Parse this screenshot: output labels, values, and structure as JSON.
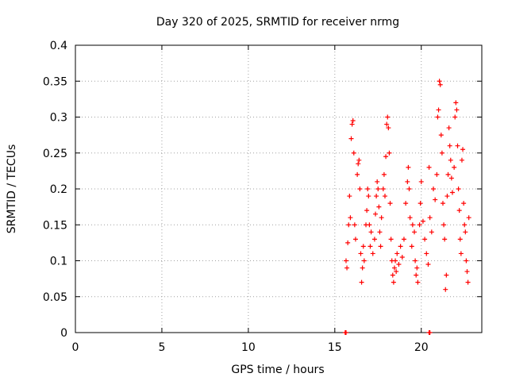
{
  "chart_data": {
    "type": "scatter",
    "title": "Day 320 of 2025, SRMTID for receiver nrmg",
    "xlabel": "GPS time / hours",
    "ylabel": "SRMTID / TECUs",
    "xlim": [
      0,
      23.5
    ],
    "ylim": [
      0,
      0.4
    ],
    "x_ticks": [
      0,
      5,
      10,
      15,
      20
    ],
    "y_ticks": [
      0,
      0.05,
      0.1,
      0.15,
      0.2,
      0.25,
      0.3,
      0.35,
      0.4
    ],
    "x_tick_labels": [
      "0",
      "5",
      "10",
      "15",
      "20"
    ],
    "y_tick_labels": [
      "0",
      "0.05",
      "0.1",
      "0.15",
      "0.2",
      "0.25",
      "0.3",
      "0.35",
      "0.4"
    ],
    "grid": true,
    "marker": "plus",
    "color": "#ff0000",
    "series": [
      {
        "name": "SRMTID",
        "points": [
          [
            15.6,
            0.0
          ],
          [
            15.65,
            0.0
          ],
          [
            20.45,
            0.0
          ],
          [
            20.5,
            0.0
          ],
          [
            15.65,
            0.1
          ],
          [
            15.7,
            0.09
          ],
          [
            15.75,
            0.125
          ],
          [
            15.8,
            0.15
          ],
          [
            15.85,
            0.19
          ],
          [
            15.9,
            0.16
          ],
          [
            15.95,
            0.27
          ],
          [
            16.0,
            0.29
          ],
          [
            16.05,
            0.295
          ],
          [
            16.1,
            0.25
          ],
          [
            16.15,
            0.15
          ],
          [
            16.2,
            0.13
          ],
          [
            16.3,
            0.22
          ],
          [
            16.35,
            0.235
          ],
          [
            16.4,
            0.24
          ],
          [
            16.45,
            0.2
          ],
          [
            16.5,
            0.11
          ],
          [
            16.55,
            0.07
          ],
          [
            16.6,
            0.09
          ],
          [
            16.65,
            0.12
          ],
          [
            16.7,
            0.1
          ],
          [
            16.8,
            0.15
          ],
          [
            16.85,
            0.17
          ],
          [
            16.9,
            0.2
          ],
          [
            16.95,
            0.19
          ],
          [
            17.0,
            0.15
          ],
          [
            17.05,
            0.12
          ],
          [
            17.1,
            0.14
          ],
          [
            17.2,
            0.11
          ],
          [
            17.3,
            0.13
          ],
          [
            17.35,
            0.165
          ],
          [
            17.4,
            0.19
          ],
          [
            17.45,
            0.21
          ],
          [
            17.5,
            0.2
          ],
          [
            17.55,
            0.175
          ],
          [
            17.6,
            0.14
          ],
          [
            17.65,
            0.12
          ],
          [
            17.7,
            0.16
          ],
          [
            17.8,
            0.2
          ],
          [
            17.85,
            0.22
          ],
          [
            17.9,
            0.19
          ],
          [
            17.95,
            0.245
          ],
          [
            18.0,
            0.29
          ],
          [
            18.05,
            0.3
          ],
          [
            18.1,
            0.285
          ],
          [
            18.15,
            0.25
          ],
          [
            18.2,
            0.18
          ],
          [
            18.25,
            0.13
          ],
          [
            18.3,
            0.1
          ],
          [
            18.35,
            0.08
          ],
          [
            18.4,
            0.07
          ],
          [
            18.45,
            0.09
          ],
          [
            18.5,
            0.1
          ],
          [
            18.55,
            0.085
          ],
          [
            18.6,
            0.11
          ],
          [
            18.7,
            0.095
          ],
          [
            18.8,
            0.12
          ],
          [
            18.9,
            0.105
          ],
          [
            19.0,
            0.13
          ],
          [
            19.1,
            0.18
          ],
          [
            19.2,
            0.21
          ],
          [
            19.25,
            0.23
          ],
          [
            19.3,
            0.2
          ],
          [
            19.35,
            0.16
          ],
          [
            19.45,
            0.12
          ],
          [
            19.5,
            0.15
          ],
          [
            19.6,
            0.14
          ],
          [
            19.65,
            0.1
          ],
          [
            19.7,
            0.08
          ],
          [
            19.75,
            0.09
          ],
          [
            19.8,
            0.07
          ],
          [
            19.9,
            0.15
          ],
          [
            19.95,
            0.18
          ],
          [
            20.0,
            0.21
          ],
          [
            20.1,
            0.155
          ],
          [
            20.2,
            0.13
          ],
          [
            20.3,
            0.11
          ],
          [
            20.4,
            0.095
          ],
          [
            20.45,
            0.23
          ],
          [
            20.5,
            0.16
          ],
          [
            20.6,
            0.14
          ],
          [
            20.7,
            0.2
          ],
          [
            20.8,
            0.185
          ],
          [
            20.9,
            0.22
          ],
          [
            20.95,
            0.3
          ],
          [
            21.0,
            0.31
          ],
          [
            21.05,
            0.35
          ],
          [
            21.1,
            0.345
          ],
          [
            21.15,
            0.275
          ],
          [
            21.2,
            0.25
          ],
          [
            21.25,
            0.18
          ],
          [
            21.3,
            0.15
          ],
          [
            21.35,
            0.13
          ],
          [
            21.4,
            0.06
          ],
          [
            21.45,
            0.08
          ],
          [
            21.5,
            0.19
          ],
          [
            21.55,
            0.22
          ],
          [
            21.6,
            0.285
          ],
          [
            21.65,
            0.26
          ],
          [
            21.7,
            0.24
          ],
          [
            21.75,
            0.215
          ],
          [
            21.8,
            0.195
          ],
          [
            21.9,
            0.23
          ],
          [
            21.95,
            0.3
          ],
          [
            22.0,
            0.32
          ],
          [
            22.05,
            0.31
          ],
          [
            22.1,
            0.26
          ],
          [
            22.15,
            0.2
          ],
          [
            22.2,
            0.17
          ],
          [
            22.25,
            0.13
          ],
          [
            22.3,
            0.11
          ],
          [
            22.35,
            0.24
          ],
          [
            22.4,
            0.255
          ],
          [
            22.45,
            0.18
          ],
          [
            22.5,
            0.15
          ],
          [
            22.55,
            0.14
          ],
          [
            22.6,
            0.1
          ],
          [
            22.65,
            0.085
          ],
          [
            22.7,
            0.07
          ],
          [
            22.75,
            0.16
          ]
        ]
      }
    ]
  }
}
